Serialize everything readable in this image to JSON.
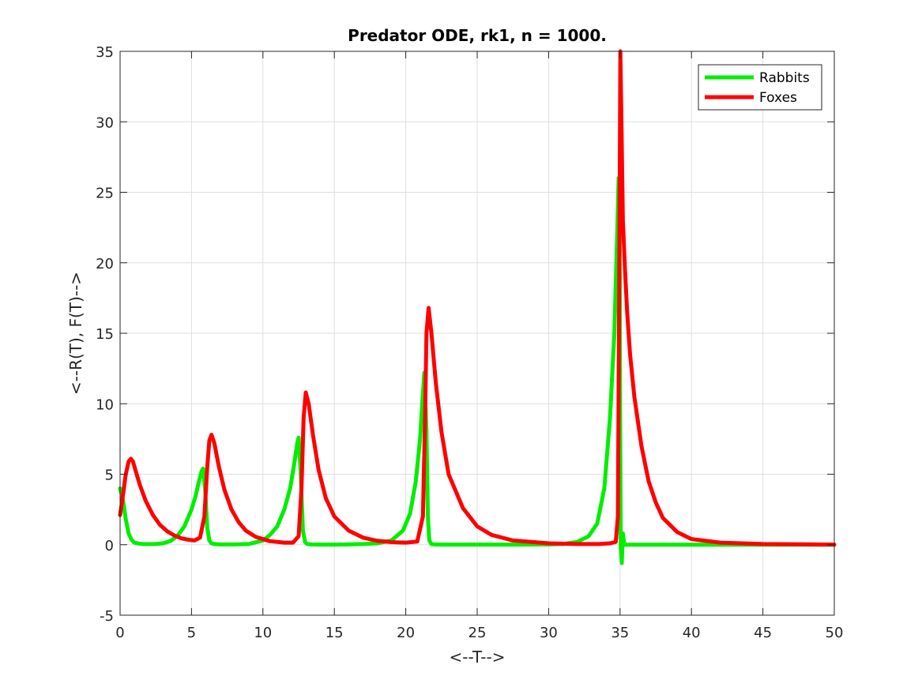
{
  "chart_data": {
    "type": "line",
    "title": "Predator ODE, rk1, n = 1000.",
    "xlabel": "<--T-->",
    "ylabel": "<--R(T), F(T)-->",
    "xlim": [
      0,
      50
    ],
    "ylim": [
      -5,
      35
    ],
    "xticks": [
      0,
      5,
      10,
      15,
      20,
      25,
      30,
      35,
      40,
      45,
      50
    ],
    "yticks": [
      -5,
      0,
      5,
      10,
      15,
      20,
      25,
      30,
      35
    ],
    "xtick_labels": [
      "0",
      "5",
      "10",
      "15",
      "20",
      "25",
      "30",
      "35",
      "40",
      "45",
      "50"
    ],
    "ytick_labels": [
      "-5",
      "0",
      "5",
      "10",
      "15",
      "20",
      "25",
      "30",
      "35"
    ],
    "grid": true,
    "legend_position": "top-right",
    "series": [
      {
        "name": "Rabbits",
        "color": "#00ee00",
        "x": [
          0,
          0.2,
          0.4,
          0.6,
          0.8,
          1.0,
          1.3,
          1.6,
          2.0,
          2.5,
          3.0,
          3.5,
          4.0,
          4.5,
          5.0,
          5.3,
          5.5,
          5.7,
          5.8,
          5.95,
          6.1,
          6.25,
          6.4,
          6.6,
          7.0,
          8.0,
          9.0,
          10.0,
          10.5,
          11.0,
          11.5,
          11.9,
          12.2,
          12.4,
          12.5,
          12.65,
          12.8,
          12.95,
          13.1,
          13.4,
          14.0,
          15.0,
          16.0,
          17.0,
          18.0,
          19.0,
          19.8,
          20.3,
          20.7,
          21.0,
          21.15,
          21.3,
          21.45,
          21.55,
          21.65,
          21.8,
          22.0,
          22.5,
          25.0,
          28.0,
          30.0,
          31.0,
          32.0,
          32.8,
          33.4,
          33.9,
          34.3,
          34.6,
          34.8,
          34.9,
          34.97,
          35.0,
          35.05,
          35.12,
          35.2,
          35.3,
          35.5,
          36.0,
          40.0,
          45.0,
          50.0
        ],
        "y": [
          4.0,
          3.2,
          1.8,
          0.8,
          0.35,
          0.15,
          0.08,
          0.05,
          0.04,
          0.05,
          0.1,
          0.25,
          0.6,
          1.3,
          2.5,
          3.5,
          4.4,
          5.2,
          5.4,
          4.0,
          1.2,
          0.3,
          0.1,
          0.05,
          0.02,
          0.02,
          0.05,
          0.3,
          0.7,
          1.3,
          2.5,
          4.0,
          5.8,
          7.2,
          7.6,
          5.0,
          1.0,
          0.2,
          0.05,
          0.02,
          0.01,
          0.01,
          0.02,
          0.05,
          0.1,
          0.3,
          1.0,
          2.2,
          4.5,
          7.5,
          10.0,
          12.2,
          8.0,
          2.0,
          0.3,
          0.05,
          0.02,
          0.01,
          0.01,
          0.01,
          0.02,
          0.05,
          0.2,
          0.6,
          1.5,
          4.0,
          9.0,
          15.0,
          22.0,
          26.0,
          24.0,
          10.0,
          -0.2,
          -1.3,
          0.8,
          0.0,
          0.0,
          0.0,
          0.0,
          0.0,
          0.0
        ]
      },
      {
        "name": "Foxes",
        "color": "#ff0000",
        "x": [
          0,
          0.2,
          0.4,
          0.6,
          0.75,
          0.9,
          1.1,
          1.4,
          1.8,
          2.3,
          2.8,
          3.3,
          3.8,
          4.3,
          4.8,
          5.2,
          5.6,
          5.9,
          6.1,
          6.25,
          6.4,
          6.6,
          6.9,
          7.3,
          7.8,
          8.3,
          8.8,
          9.5,
          10.5,
          11.5,
          12.1,
          12.5,
          12.7,
          12.85,
          13.0,
          13.2,
          13.5,
          13.9,
          14.4,
          15.0,
          16.0,
          17.0,
          18.0,
          19.0,
          20.0,
          20.8,
          21.2,
          21.35,
          21.45,
          21.6,
          21.8,
          22.1,
          22.5,
          23.0,
          24.0,
          25.0,
          26.0,
          27.5,
          30.0,
          32.0,
          33.5,
          34.3,
          34.7,
          34.85,
          34.95,
          35.02,
          35.1,
          35.2,
          35.35,
          35.5,
          35.7,
          36.0,
          36.5,
          37.0,
          37.5,
          38.0,
          39.0,
          40.0,
          42.0,
          45.0,
          50.0
        ],
        "y": [
          2.1,
          3.5,
          5.0,
          5.9,
          6.1,
          5.9,
          5.2,
          4.2,
          3.1,
          2.1,
          1.4,
          0.95,
          0.65,
          0.45,
          0.35,
          0.3,
          0.5,
          2.0,
          5.5,
          7.4,
          7.8,
          7.2,
          5.6,
          3.9,
          2.5,
          1.6,
          1.0,
          0.55,
          0.25,
          0.15,
          0.15,
          0.6,
          4.0,
          9.0,
          10.8,
          10.0,
          7.8,
          5.3,
          3.3,
          2.0,
          1.0,
          0.5,
          0.28,
          0.18,
          0.15,
          0.22,
          2.0,
          9.0,
          15.0,
          16.8,
          15.0,
          11.5,
          8.0,
          5.0,
          2.6,
          1.3,
          0.7,
          0.3,
          0.1,
          0.05,
          0.05,
          0.1,
          0.2,
          2.0,
          20.0,
          35.0,
          30.0,
          23.0,
          19.5,
          16.5,
          13.5,
          10.5,
          7.0,
          4.5,
          3.0,
          1.9,
          0.9,
          0.4,
          0.15,
          0.05,
          0.01
        ]
      }
    ]
  }
}
